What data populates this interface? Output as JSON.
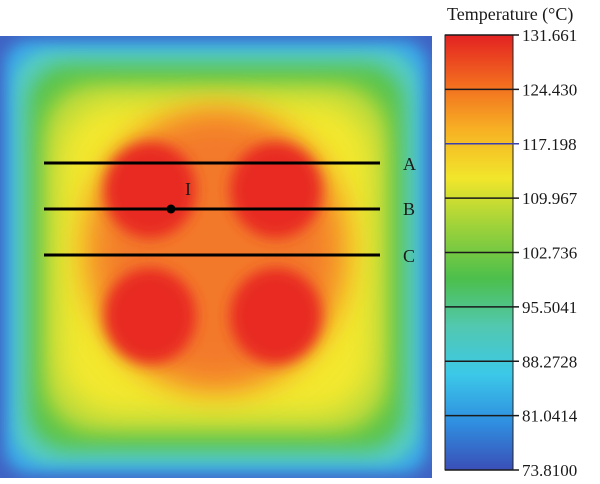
{
  "chart_data": {
    "type": "heatmap",
    "colorbar": {
      "title": "Temperature (°C)",
      "min": 73.81,
      "max": 131.661,
      "ticks": [
        "131.661",
        "124.430",
        "117.198",
        "109.967",
        "102.736",
        "95.5041",
        "88.2728",
        "81.0414",
        "73.8100"
      ],
      "colors": [
        "#3a4fb8",
        "#2f8fe0",
        "#3cc8e8",
        "#52c8b0",
        "#4cbf4c",
        "#9ed23a",
        "#f1e62b",
        "#f7b224",
        "#f26a1f",
        "#e32222"
      ]
    },
    "lines": [
      {
        "label": "A"
      },
      {
        "label": "B"
      },
      {
        "label": "C"
      }
    ],
    "point": {
      "label": "I"
    }
  }
}
